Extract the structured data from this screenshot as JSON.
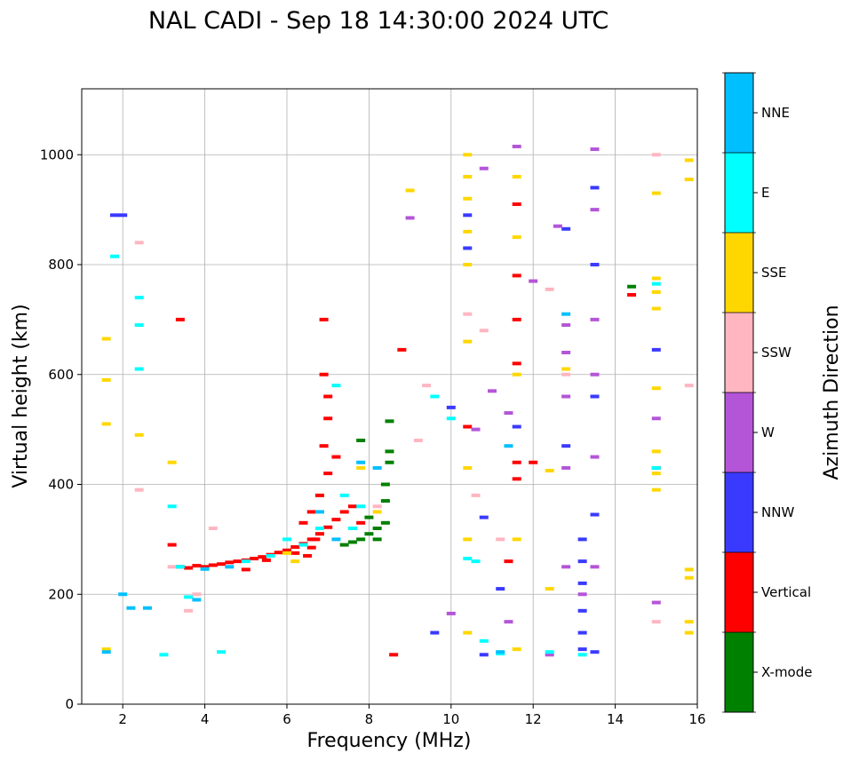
{
  "chart_data": {
    "type": "scatter",
    "title": "NAL CADI - Sep 18 14:30:00 2024 UTC",
    "xlabel": "Frequency (MHz)",
    "ylabel": "Virtual height (km)",
    "xlim": [
      1,
      16
    ],
    "ylim": [
      0,
      1120
    ],
    "x_ticks": [
      2,
      4,
      6,
      8,
      10,
      12,
      14,
      16
    ],
    "y_ticks": [
      0,
      200,
      400,
      600,
      800,
      1000
    ],
    "grid": true,
    "colorbar": {
      "label": "Azimuth Direction",
      "categories": [
        {
          "name": "X-mode",
          "color": "#008000"
        },
        {
          "name": "Vertical",
          "color": "#ff0000"
        },
        {
          "name": "NNW",
          "color": "#3a3aff"
        },
        {
          "name": "W",
          "color": "#b455d8"
        },
        {
          "name": "SSW",
          "color": "#ffb6c1"
        },
        {
          "name": "SSE",
          "color": "#ffd700"
        },
        {
          "name": "E",
          "color": "#00ffff"
        },
        {
          "name": "NNE",
          "color": "#00bfff"
        }
      ]
    },
    "series": [
      {
        "name": "Vertical",
        "points": [
          [
            3.4,
            250
          ],
          [
            3.6,
            248
          ],
          [
            3.8,
            252
          ],
          [
            4.0,
            250
          ],
          [
            4.2,
            253
          ],
          [
            4.4,
            255
          ],
          [
            4.6,
            258
          ],
          [
            4.8,
            260
          ],
          [
            5.0,
            262
          ],
          [
            5.2,
            265
          ],
          [
            5.4,
            268
          ],
          [
            5.6,
            272
          ],
          [
            5.8,
            276
          ],
          [
            6.0,
            280
          ],
          [
            6.2,
            286
          ],
          [
            6.4,
            292
          ],
          [
            6.6,
            300
          ],
          [
            6.8,
            310
          ],
          [
            7.0,
            322
          ],
          [
            7.2,
            336
          ],
          [
            6.4,
            330
          ],
          [
            6.6,
            350
          ],
          [
            6.8,
            380
          ],
          [
            7.0,
            420
          ],
          [
            6.9,
            470
          ],
          [
            7.0,
            520
          ],
          [
            7.0,
            560
          ],
          [
            6.9,
            600
          ],
          [
            6.9,
            700
          ],
          [
            7.2,
            450
          ],
          [
            5.0,
            245
          ],
          [
            5.5,
            262
          ],
          [
            6.2,
            275
          ],
          [
            6.6,
            285
          ],
          [
            7.4,
            350
          ],
          [
            8.8,
            645
          ],
          [
            8.6,
            90
          ],
          [
            10.4,
            505
          ],
          [
            11.6,
            620
          ],
          [
            11.6,
            410
          ],
          [
            11.6,
            440
          ],
          [
            11.6,
            700
          ],
          [
            11.6,
            780
          ],
          [
            11.6,
            910
          ],
          [
            12.0,
            440
          ],
          [
            11.4,
            260
          ],
          [
            14.4,
            745
          ],
          [
            15.0,
            430
          ],
          [
            3.2,
            290
          ],
          [
            3.4,
            700
          ],
          [
            6.7,
            300
          ],
          [
            6.5,
            270
          ],
          [
            7.8,
            330
          ],
          [
            7.6,
            360
          ]
        ]
      },
      {
        "name": "X-mode",
        "points": [
          [
            7.6,
            295
          ],
          [
            7.8,
            300
          ],
          [
            8.0,
            310
          ],
          [
            8.2,
            320
          ],
          [
            8.4,
            330
          ],
          [
            8.2,
            300
          ],
          [
            8.4,
            370
          ],
          [
            8.4,
            400
          ],
          [
            8.5,
            440
          ],
          [
            8.5,
            460
          ],
          [
            8.5,
            515
          ],
          [
            7.8,
            480
          ],
          [
            7.4,
            290
          ],
          [
            8.0,
            340
          ],
          [
            14.4,
            760
          ]
        ]
      },
      {
        "name": "NNW",
        "points": [
          [
            13.2,
            300
          ],
          [
            13.2,
            260
          ],
          [
            13.2,
            220
          ],
          [
            13.2,
            170
          ],
          [
            13.2,
            130
          ],
          [
            13.2,
            100
          ],
          [
            13.5,
            95
          ],
          [
            13.5,
            345
          ],
          [
            13.5,
            560
          ],
          [
            13.5,
            800
          ],
          [
            13.5,
            940
          ],
          [
            12.8,
            470
          ],
          [
            12.8,
            865
          ],
          [
            10.0,
            540
          ],
          [
            10.4,
            830
          ],
          [
            10.4,
            890
          ],
          [
            10.8,
            340
          ],
          [
            10.8,
            90
          ],
          [
            11.2,
            210
          ],
          [
            11.6,
            505
          ],
          [
            15.0,
            645
          ],
          [
            9.6,
            130
          ],
          [
            2.0,
            890
          ],
          [
            1.8,
            890
          ]
        ]
      },
      {
        "name": "W",
        "points": [
          [
            9.0,
            885
          ],
          [
            13.5,
            1010
          ],
          [
            13.5,
            900
          ],
          [
            13.5,
            700
          ],
          [
            13.5,
            600
          ],
          [
            13.5,
            450
          ],
          [
            13.5,
            250
          ],
          [
            13.2,
            200
          ],
          [
            12.8,
            690
          ],
          [
            12.8,
            640
          ],
          [
            12.8,
            560
          ],
          [
            12.8,
            430
          ],
          [
            12.8,
            250
          ],
          [
            12.6,
            870
          ],
          [
            12.4,
            90
          ],
          [
            10.8,
            975
          ],
          [
            10.6,
            500
          ],
          [
            11.0,
            570
          ],
          [
            11.4,
            150
          ],
          [
            15.0,
            520
          ],
          [
            15.0,
            185
          ],
          [
            12.0,
            770
          ],
          [
            10.0,
            165
          ],
          [
            11.4,
            530
          ],
          [
            11.6,
            1015
          ]
        ]
      },
      {
        "name": "SSW",
        "points": [
          [
            9.2,
            480
          ],
          [
            8.2,
            360
          ],
          [
            9.4,
            580
          ],
          [
            10.4,
            710
          ],
          [
            10.8,
            680
          ],
          [
            12.4,
            755
          ],
          [
            12.8,
            600
          ],
          [
            15.0,
            1000
          ],
          [
            15.0,
            150
          ],
          [
            15.8,
            580
          ],
          [
            3.2,
            250
          ],
          [
            3.6,
            170
          ],
          [
            2.4,
            840
          ],
          [
            2.4,
            390
          ],
          [
            4.2,
            320
          ],
          [
            3.8,
            200
          ],
          [
            10.6,
            380
          ],
          [
            11.2,
            300
          ]
        ]
      },
      {
        "name": "SSE",
        "points": [
          [
            9.0,
            935
          ],
          [
            10.4,
            1000
          ],
          [
            10.4,
            960
          ],
          [
            10.4,
            920
          ],
          [
            10.4,
            860
          ],
          [
            10.4,
            800
          ],
          [
            10.4,
            660
          ],
          [
            10.4,
            430
          ],
          [
            10.4,
            300
          ],
          [
            10.4,
            130
          ],
          [
            11.6,
            960
          ],
          [
            11.6,
            850
          ],
          [
            11.6,
            600
          ],
          [
            11.6,
            300
          ],
          [
            11.6,
            100
          ],
          [
            12.4,
            425
          ],
          [
            12.4,
            210
          ],
          [
            12.8,
            610
          ],
          [
            15.0,
            775
          ],
          [
            15.0,
            750
          ],
          [
            15.0,
            720
          ],
          [
            15.0,
            575
          ],
          [
            15.0,
            460
          ],
          [
            15.0,
            420
          ],
          [
            15.0,
            390
          ],
          [
            15.0,
            930
          ],
          [
            15.8,
            990
          ],
          [
            15.8,
            955
          ],
          [
            15.8,
            245
          ],
          [
            15.8,
            230
          ],
          [
            15.8,
            150
          ],
          [
            15.8,
            130
          ],
          [
            1.6,
            665
          ],
          [
            1.6,
            590
          ],
          [
            1.6,
            510
          ],
          [
            1.6,
            100
          ],
          [
            2.4,
            490
          ],
          [
            3.2,
            440
          ],
          [
            6.0,
            275
          ],
          [
            6.2,
            260
          ],
          [
            7.8,
            430
          ],
          [
            8.2,
            350
          ]
        ]
      },
      {
        "name": "E",
        "points": [
          [
            3.4,
            250
          ],
          [
            3.6,
            195
          ],
          [
            4.4,
            95
          ],
          [
            5.0,
            260
          ],
          [
            5.6,
            270
          ],
          [
            6.0,
            300
          ],
          [
            6.4,
            290
          ],
          [
            6.8,
            320
          ],
          [
            7.2,
            580
          ],
          [
            7.4,
            380
          ],
          [
            7.6,
            320
          ],
          [
            7.8,
            360
          ],
          [
            9.6,
            560
          ],
          [
            10.0,
            520
          ],
          [
            10.4,
            265
          ],
          [
            10.8,
            115
          ],
          [
            11.2,
            92
          ],
          [
            12.4,
            95
          ],
          [
            13.2,
            90
          ],
          [
            15.0,
            765
          ],
          [
            15.0,
            430
          ],
          [
            2.4,
            740
          ],
          [
            2.4,
            690
          ],
          [
            2.4,
            610
          ],
          [
            1.8,
            815
          ],
          [
            3.2,
            360
          ],
          [
            3.0,
            90
          ],
          [
            10.6,
            260
          ]
        ]
      },
      {
        "name": "NNE",
        "points": [
          [
            1.6,
            95
          ],
          [
            2.0,
            200
          ],
          [
            2.2,
            175
          ],
          [
            2.6,
            175
          ],
          [
            3.8,
            190
          ],
          [
            6.8,
            350
          ],
          [
            7.2,
            300
          ],
          [
            7.8,
            440
          ],
          [
            8.2,
            430
          ],
          [
            11.2,
            95
          ],
          [
            11.4,
            470
          ],
          [
            12.8,
            710
          ],
          [
            4.0,
            246
          ],
          [
            4.6,
            250
          ]
        ]
      }
    ]
  }
}
